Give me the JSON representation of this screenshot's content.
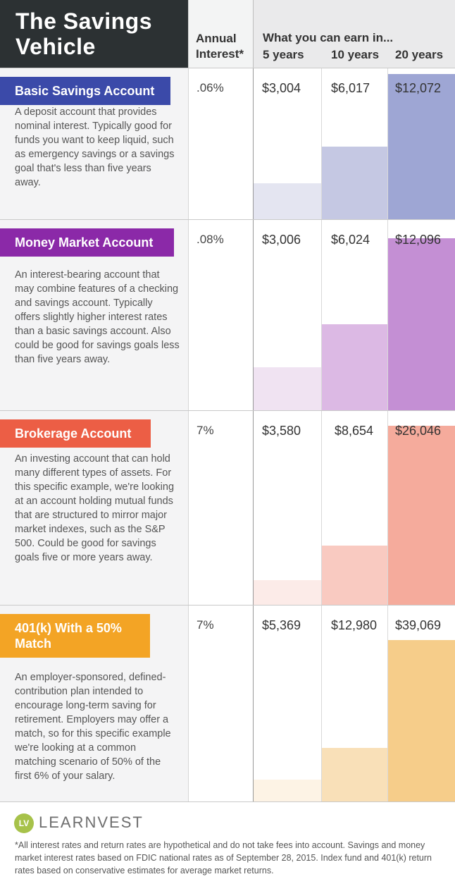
{
  "title": "The Savings\nVehicle",
  "header": {
    "annual_interest": "Annual\nInterest*",
    "earn_label": "What you can earn in...",
    "years": [
      "5 years",
      "10 years",
      "20 years"
    ]
  },
  "colors": {
    "header_dark": "#2c3133",
    "basic": "#3b4aa9",
    "money_market": "#8b29a8",
    "brokerage": "#ec5e45",
    "k401": "#f3a425"
  },
  "chart_data": {
    "type": "bar",
    "categories": [
      "5 years",
      "10 years",
      "20 years"
    ],
    "series": [
      {
        "name": "Basic Savings Account",
        "rate": ".06%",
        "description": "A deposit account that provides nominal interest. Typically good for funds you want to keep liquid, such as emergency savings or a savings goal that's less than five years away.",
        "values": [
          3004,
          6017,
          12072
        ],
        "labels": [
          "$3,004",
          "$6,017",
          "$12,072"
        ],
        "bar_colors": [
          "#e4e5f1",
          "#c5c8e3",
          "#9ea6d4"
        ]
      },
      {
        "name": "Money Market Account",
        "rate": ".08%",
        "description": "An interest-bearing account that may combine features of a checking and savings account. Typically offers slightly higher interest rates than a basic savings account. Also could be good for savings goals less than five years away.",
        "values": [
          3006,
          6024,
          12096
        ],
        "labels": [
          "$3,006",
          "$6,024",
          "$12,096"
        ],
        "bar_colors": [
          "#f0e3f2",
          "#dcb9e4",
          "#c48fd4"
        ]
      },
      {
        "name": "Brokerage Account",
        "rate": "7%",
        "description": "An investing account that can hold many different types of assets. For this specific example, we're looking at an account holding mutual funds that are structured to mirror major market indexes, such as the S&P 500. Could be good for savings goals five or more years away.",
        "values": [
          3580,
          8654,
          26046
        ],
        "labels": [
          "$3,580",
          "$8,654",
          "$26,046"
        ],
        "bar_colors": [
          "#fcebe8",
          "#f9cac1",
          "#f5ab9c"
        ]
      },
      {
        "name": "401(k) With a 50% Match",
        "rate": "7%",
        "description": "An employer-sponsored, defined-contribution plan intended to encourage long-term saving for retirement. Employers may offer a match, so for this specific example we're looking at a common matching scenario of 50% of the first 6% of your salary.",
        "values": [
          5369,
          12980,
          39069
        ],
        "labels": [
          "$5,369",
          "$12,980",
          "$39,069"
        ],
        "bar_colors": [
          "#fdf3e5",
          "#f9e0b8",
          "#f6cd8a"
        ]
      }
    ]
  },
  "footer": {
    "logo_mark": "LV",
    "logo_text": "LEARNVEST",
    "note": "*All interest rates and return rates are hypothetical and do not take fees into account. Savings and money market interest rates based on FDIC national rates as of September 28, 2015. Index fund and 401(k) return rates based on conservative estimates for average market returns."
  }
}
